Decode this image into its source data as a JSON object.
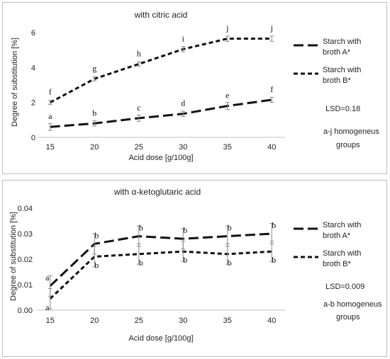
{
  "chart_data": [
    {
      "type": "line",
      "title": "with citric acid",
      "xlabel": "Acid dose [g/100g]",
      "ylabel": "Degree of substitution [%]",
      "x": [
        15,
        20,
        25,
        30,
        35,
        40
      ],
      "xlim": [
        13.5,
        41.5
      ],
      "ylim": [
        0,
        6
      ],
      "yticks": [
        0,
        2,
        4,
        6
      ],
      "ytick_labels": [
        "0",
        "2",
        "4",
        "6"
      ],
      "grid": false,
      "legend_position": "right",
      "series": [
        {
          "name": "Starch with broth A*",
          "dash": "long-dash",
          "values": [
            0.6,
            0.8,
            1.1,
            1.35,
            1.8,
            2.15
          ],
          "errors": [
            0.2,
            0.15,
            0.18,
            0.15,
            0.2,
            0.15
          ],
          "group_labels": [
            "a",
            "b",
            "c",
            "d",
            "e",
            "f"
          ]
        },
        {
          "name": "Starch with broth B*",
          "dash": "short-dash",
          "values": [
            2.0,
            3.35,
            4.2,
            5.05,
            5.65,
            5.65
          ],
          "errors": [
            0.12,
            0.12,
            0.12,
            0.15,
            0.15,
            0.15
          ],
          "group_labels": [
            "f",
            "g",
            "h",
            "i",
            "j",
            "j"
          ]
        }
      ],
      "annotations": [
        "LSD=0.18",
        "a-j homogeneus",
        "groups"
      ]
    },
    {
      "type": "line",
      "title": "with α-ketoglutaric acid",
      "xlabel": "Acid dose [g/100g]",
      "ylabel": "Degree of substitution [%]",
      "x": [
        15,
        20,
        25,
        30,
        35,
        40
      ],
      "xlim": [
        13.5,
        41.5
      ],
      "ylim": [
        0,
        0.04
      ],
      "yticks": [
        0,
        0.01,
        0.02,
        0.03,
        0.04
      ],
      "ytick_labels": [
        "0.00",
        "0.01",
        "0.02",
        "0.03",
        "0.04"
      ],
      "grid": false,
      "legend_position": "right",
      "series": [
        {
          "name": "Starch with broth A*",
          "dash": "long-dash",
          "values": [
            0.0095,
            0.026,
            0.029,
            0.028,
            0.029,
            0.03
          ],
          "errors": [
            0.004,
            0.004,
            0.004,
            0.004,
            0.004,
            0.004
          ],
          "group_labels": [
            "a",
            "b",
            "b",
            "b",
            "b",
            "b"
          ]
        },
        {
          "name": "Starch with broth B*",
          "dash": "short-dash",
          "values": [
            0.0045,
            0.021,
            0.022,
            0.023,
            0.022,
            0.023
          ],
          "errors": [
            0.004,
            0.004,
            0.004,
            0.004,
            0.004,
            0.004
          ],
          "group_labels": [
            "a",
            "b",
            "b",
            "b",
            "b",
            "b"
          ]
        }
      ],
      "annotations": [
        "LSD=0.009",
        "a-b homogeneus",
        "groups"
      ]
    }
  ]
}
